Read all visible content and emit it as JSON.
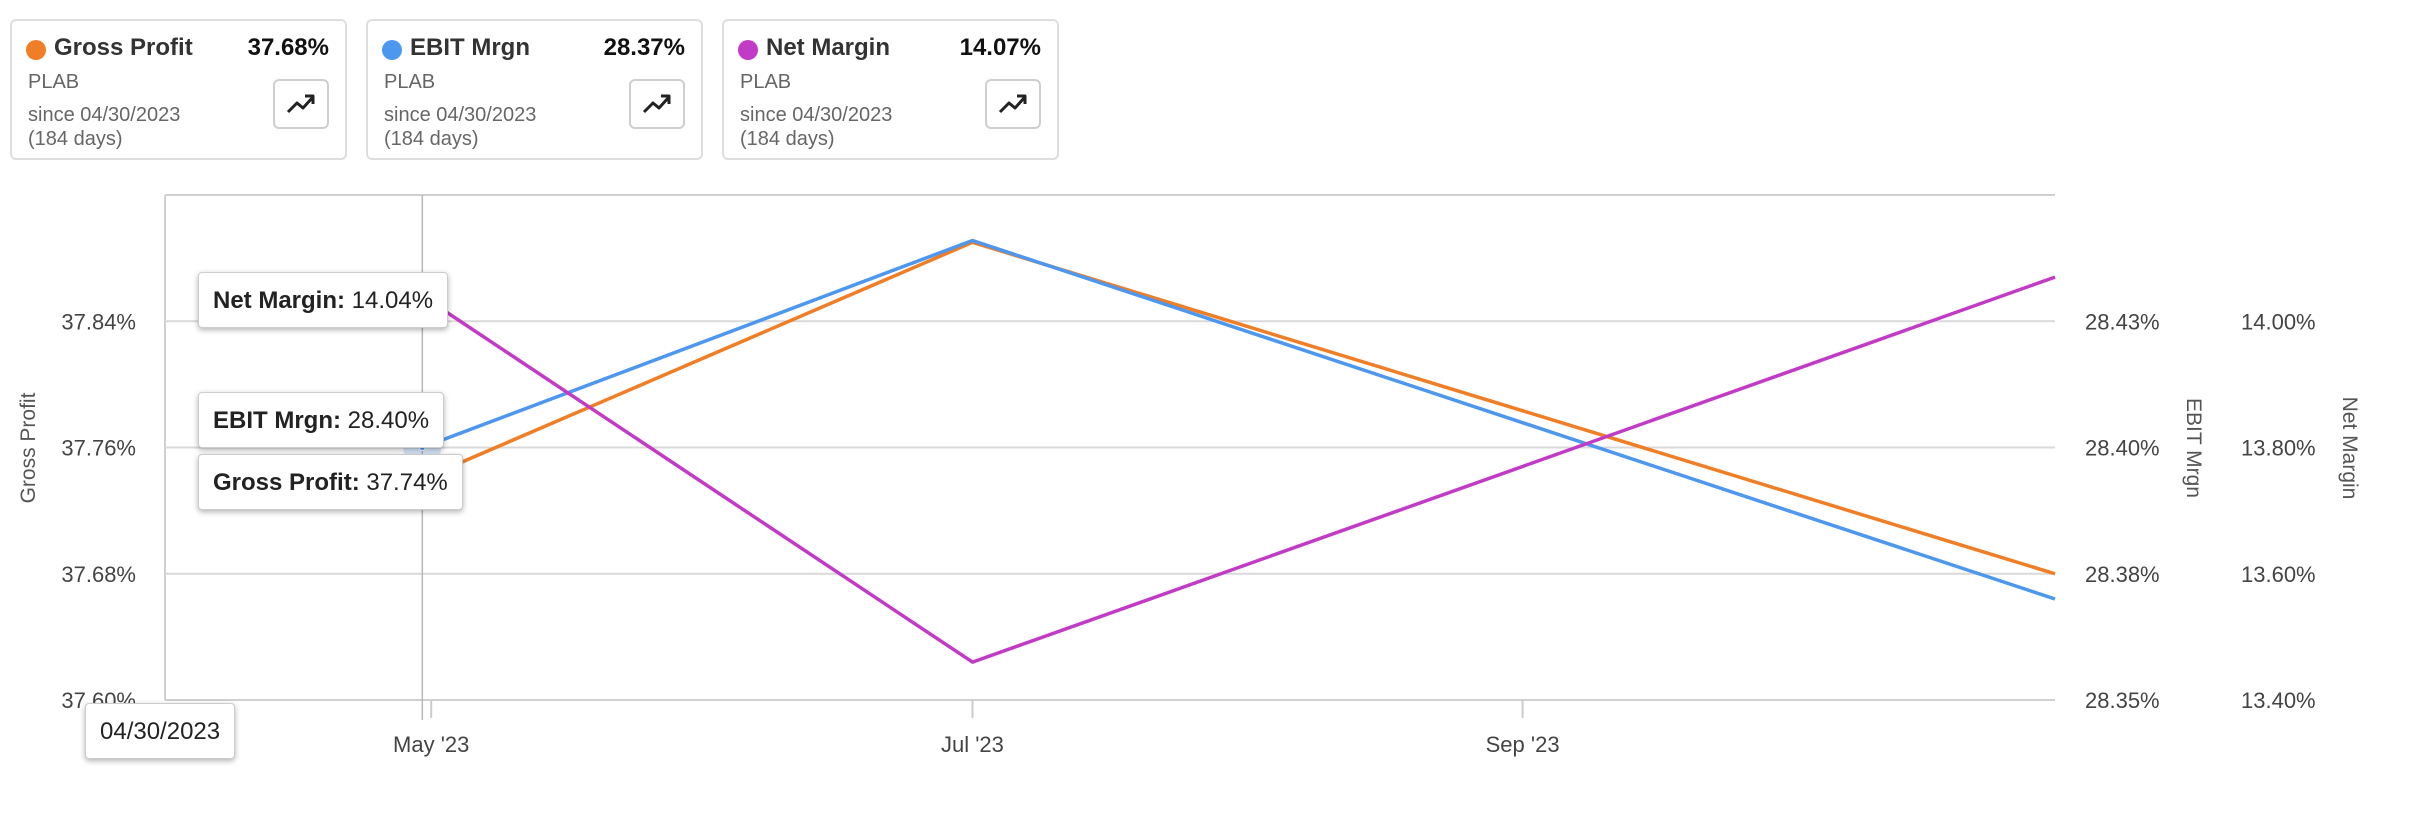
{
  "cards": [
    {
      "name": "Gross Profit",
      "value": "37.68%",
      "ticker": "PLAB",
      "since": "since 04/30/2023",
      "days": "(184 days)",
      "color": "#f07e26",
      "icon": "trend-up-icon"
    },
    {
      "name": "EBIT Mrgn",
      "value": "28.37%",
      "ticker": "PLAB",
      "since": "since 04/30/2023",
      "days": "(184 days)",
      "color": "#4d97ee",
      "icon": "trend-up-icon"
    },
    {
      "name": "Net Margin",
      "value": "14.07%",
      "ticker": "PLAB",
      "since": "since 04/30/2023",
      "days": "(184 days)",
      "color": "#c23bc6",
      "icon": "trend-up-icon"
    }
  ],
  "tooltips": {
    "net_margin": {
      "label": "Net Margin:",
      "value": "14.04%"
    },
    "ebit_mrgn": {
      "label": "EBIT Mrgn:",
      "value": "28.40%"
    },
    "gross_profit": {
      "label": "Gross Profit:",
      "value": "37.74%"
    },
    "date": "04/30/2023"
  },
  "chart_data": {
    "type": "line",
    "x_tick_labels": [
      "May '23",
      "Jul '23",
      "Sep '23"
    ],
    "x_ticks": [
      "2023-05-01",
      "2023-07-01",
      "2023-09-01"
    ],
    "x_range": [
      "2023-04-01",
      "2023-10-31"
    ],
    "grid": true,
    "axes": {
      "left": {
        "label": "Gross Profit",
        "ticks": [
          "37.60%",
          "37.68%",
          "37.76%",
          "37.84%"
        ],
        "range": [
          37.6,
          37.92
        ]
      },
      "right1": {
        "label": "EBIT Mrgn",
        "ticks": [
          "28.35%",
          "28.38%",
          "28.40%",
          "28.43%"
        ],
        "range": [
          28.35,
          28.45
        ]
      },
      "right2": {
        "label": "Net Margin",
        "ticks": [
          "13.40%",
          "13.60%",
          "13.80%",
          "14.00%"
        ],
        "range": [
          13.4,
          14.2
        ]
      }
    },
    "series": [
      {
        "name": "Gross Profit",
        "axis": "left",
        "color": "#f07e26",
        "x": [
          "2023-04-30",
          "2023-07-01",
          "2023-10-31"
        ],
        "y": [
          37.74,
          37.89,
          37.68
        ]
      },
      {
        "name": "EBIT Mrgn",
        "axis": "right1",
        "color": "#4d97ee",
        "x": [
          "2023-04-30",
          "2023-07-01",
          "2023-10-31"
        ],
        "y": [
          28.4,
          28.441,
          28.37
        ]
      },
      {
        "name": "Net Margin",
        "axis": "right2",
        "color": "#c23bc6",
        "x": [
          "2023-04-30",
          "2023-07-01",
          "2023-10-31"
        ],
        "y": [
          14.04,
          13.46,
          14.07
        ]
      }
    ]
  }
}
